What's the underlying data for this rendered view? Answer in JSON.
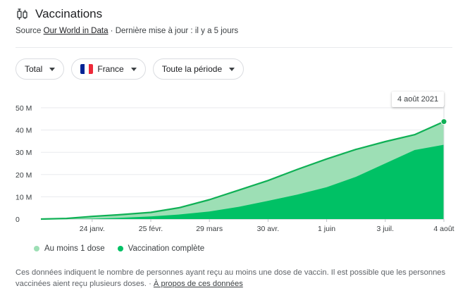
{
  "header": {
    "title": "Vaccinations",
    "icon": "syringe-icon",
    "source_prefix": "Source",
    "source_link": "Our World in Data",
    "source_suffix": "· Dernière mise à jour : il y a 5 jours"
  },
  "filters": {
    "metric": "Total",
    "country": "France",
    "period": "Toute la période"
  },
  "colors": {
    "one_dose": "#9ddfb5",
    "complete": "#00c165",
    "line": "#0fb055",
    "flag_blue": "#002395",
    "flag_white": "#ffffff",
    "flag_red": "#ed2939"
  },
  "tooltip": {
    "date": "4 août 2021"
  },
  "chart_data": {
    "type": "area",
    "title": "",
    "xlabel": "",
    "ylabel": "",
    "ylim": [
      0,
      50000000
    ],
    "yticks": [
      0,
      10000000,
      20000000,
      30000000,
      40000000,
      50000000
    ],
    "ytick_labels": [
      "0",
      "10 M",
      "20 M",
      "30 M",
      "40 M",
      "50 M"
    ],
    "x_start": "2020-12-27",
    "x_end": "2021-08-04",
    "xticks": [
      "2021-01-24",
      "2021-02-25",
      "2021-03-29",
      "2021-04-30",
      "2021-06-01",
      "2021-07-03",
      "2021-08-04"
    ],
    "xtick_labels": [
      "24 janv.",
      "25 févr.",
      "29 mars",
      "30 avr.",
      "1 juin",
      "3 juil.",
      "4 août"
    ],
    "grid": true,
    "legend_position": "bottom-left",
    "dates": [
      "2020-12-27",
      "2021-01-10",
      "2021-01-24",
      "2021-02-07",
      "2021-02-25",
      "2021-03-13",
      "2021-03-29",
      "2021-04-14",
      "2021-04-30",
      "2021-05-16",
      "2021-06-01",
      "2021-06-17",
      "2021-07-03",
      "2021-07-19",
      "2021-08-04"
    ],
    "series": [
      {
        "name": "Au moins 1 dose",
        "values": [
          0,
          300000,
          1200000,
          1900000,
          3000000,
          5200000,
          8700000,
          13000000,
          17300000,
          22300000,
          27000000,
          31300000,
          34800000,
          37900000,
          43800000
        ]
      },
      {
        "name": "Vaccination complète",
        "values": [
          0,
          0,
          150000,
          500000,
          1200000,
          2100000,
          3400000,
          5500000,
          8200000,
          11000000,
          14300000,
          19000000,
          25000000,
          31000000,
          33400000
        ]
      }
    ]
  },
  "note": {
    "text": "Ces données indiquent le nombre de personnes ayant reçu au moins une dose de vaccin. Il est possible que les personnes vaccinées aient reçu plusieurs doses.",
    "link": "À propos de ces données"
  }
}
